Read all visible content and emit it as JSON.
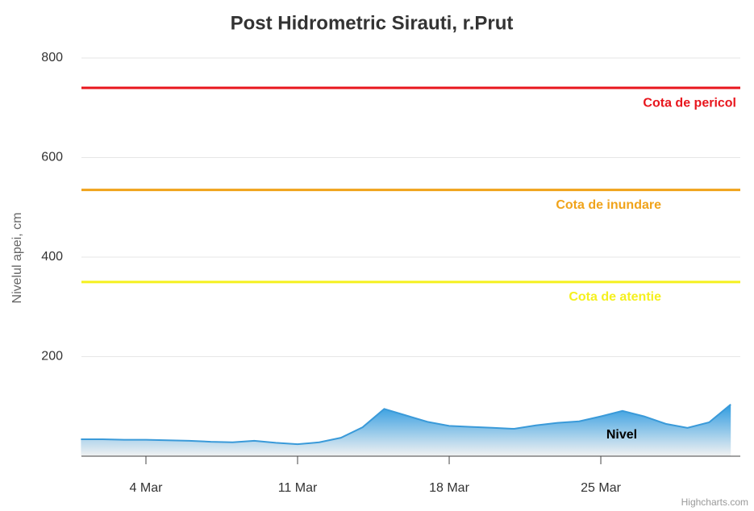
{
  "chart_data": {
    "type": "area",
    "title": "Post Hidrometric Sirauti, r.Prut",
    "y_axis_label": "Nivelul apei, cm",
    "categories": [
      "1 Mar",
      "2 Mar",
      "3 Mar",
      "4 Mar",
      "5 Mar",
      "6 Mar",
      "7 Mar",
      "8 Mar",
      "9 Mar",
      "10 Mar",
      "11 Mar",
      "12 Mar",
      "13 Mar",
      "14 Mar",
      "15 Mar",
      "16 Mar",
      "17 Mar",
      "18 Mar",
      "19 Mar",
      "20 Mar",
      "21 Mar",
      "22 Mar",
      "23 Mar",
      "24 Mar",
      "25 Mar",
      "26 Mar",
      "27 Mar",
      "28 Mar",
      "29 Mar",
      "30 Mar",
      "31 Mar"
    ],
    "series": [
      {
        "name": "Nivel",
        "color": "#3a9ad9",
        "values": [
          34,
          34,
          33,
          33,
          32,
          31,
          29,
          28,
          31,
          27,
          24,
          28,
          37,
          58,
          95,
          82,
          69,
          61,
          59,
          57,
          55,
          62,
          67,
          70,
          80,
          91,
          80,
          65,
          57,
          68,
          104
        ]
      }
    ],
    "xticks": [
      "4 Mar",
      "11 Mar",
      "18 Mar",
      "25 Mar"
    ],
    "ylim": [
      0,
      800
    ],
    "yticks": [
      200,
      400,
      600,
      800
    ],
    "grid": true,
    "plot_lines": [
      {
        "label": "Cota de pericol",
        "value": 740,
        "color": "#e8161d"
      },
      {
        "label": "Cota de inundare",
        "value": 535,
        "color": "#f0a31a"
      },
      {
        "label": "Cota de atentie",
        "value": 350,
        "color": "#f5f01e"
      }
    ],
    "credits": "Highcharts.com"
  }
}
